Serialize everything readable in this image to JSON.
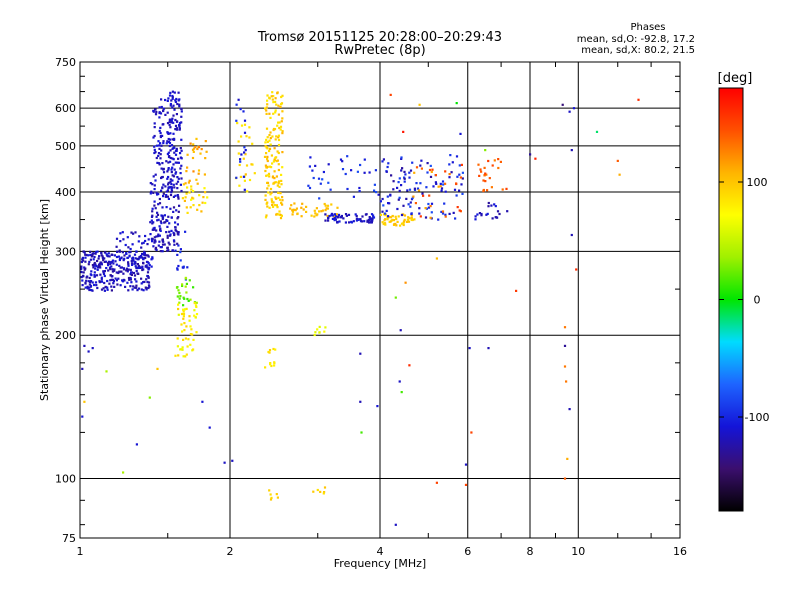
{
  "header": {
    "title": "Tromsø 20151125 20:28:00–20:29:43",
    "subtitle": "RwPretec (8p)"
  },
  "stats": {
    "heading": "Phases",
    "line_o": "mean, sd,O: -92.8, 17.2",
    "line_x": "mean, sd,X: 80.2, 21.5"
  },
  "colorbar": {
    "label": "[deg]",
    "ticks": [
      {
        "value": 100,
        "label": "100"
      },
      {
        "value": 0,
        "label": "0"
      },
      {
        "value": -100,
        "label": "-100"
      }
    ],
    "range": [
      -180,
      180
    ]
  },
  "chart_data": {
    "type": "scatter",
    "title": "Tromsø 20151125 20:28:00–20:29:43",
    "subtitle": "RwPretec (8p)",
    "xlabel": "Frequency [MHz]",
    "ylabel": "Stationary phase Virtual Height [km]",
    "x_scale": "log",
    "y_scale": "log",
    "xlim": [
      1,
      16
    ],
    "ylim": [
      75,
      750
    ],
    "grid": true,
    "x_ticks": [
      {
        "value": 1,
        "label": "1"
      },
      {
        "value": 2,
        "label": "2"
      },
      {
        "value": 4,
        "label": "4"
      },
      {
        "value": 6,
        "label": "6"
      },
      {
        "value": 8,
        "label": "8"
      },
      {
        "value": 10,
        "label": "10"
      },
      {
        "value": 16,
        "label": "16"
      }
    ],
    "y_ticks": [
      {
        "value": 75,
        "label": "75"
      },
      {
        "value": 100,
        "label": "100"
      },
      {
        "value": 200,
        "label": "200"
      },
      {
        "value": 300,
        "label": "300"
      },
      {
        "value": 400,
        "label": "400"
      },
      {
        "value": 500,
        "label": "500"
      },
      {
        "value": 600,
        "label": "600"
      },
      {
        "value": 750,
        "label": "750"
      }
    ],
    "color_by": "phase [deg]",
    "color_range": [
      -180,
      180
    ],
    "clusters": [
      {
        "f": [
          1.0,
          1.38
        ],
        "h": [
          248,
          300
        ],
        "phase": [
          -130,
          -105
        ],
        "count": 300
      },
      {
        "f": [
          1.18,
          1.4
        ],
        "h": [
          275,
          330
        ],
        "phase": [
          -125,
          -105
        ],
        "count": 60
      },
      {
        "f": [
          1.38,
          1.58
        ],
        "h": [
          300,
          420
        ],
        "phase": [
          -130,
          -105
        ],
        "count": 150
      },
      {
        "f": [
          1.4,
          1.5
        ],
        "h": [
          420,
          640
        ],
        "phase": [
          -125,
          -105
        ],
        "count": 70
      },
      {
        "f": [
          1.5,
          1.6
        ],
        "h": [
          400,
          650
        ],
        "phase": [
          -125,
          -105
        ],
        "count": 130
      },
      {
        "f": [
          1.6,
          1.8
        ],
        "h": [
          360,
          420
        ],
        "phase": [
          70,
          110
        ],
        "count": 30
      },
      {
        "f": [
          1.62,
          1.8
        ],
        "h": [
          420,
          520
        ],
        "phase": [
          95,
          130
        ],
        "count": 25
      },
      {
        "f": [
          1.55,
          1.65
        ],
        "h": [
          250,
          330
        ],
        "phase": [
          -110,
          -90
        ],
        "count": 15
      },
      {
        "f": [
          1.55,
          1.72
        ],
        "h": [
          230,
          265
        ],
        "phase": [
          10,
          40
        ],
        "count": 25
      },
      {
        "f": [
          1.55,
          1.72
        ],
        "h": [
          180,
          235
        ],
        "phase": [
          60,
          95
        ],
        "count": 50
      },
      {
        "f": [
          2.35,
          2.55
        ],
        "h": [
          350,
          650
        ],
        "phase": [
          80,
          110
        ],
        "count": 160
      },
      {
        "f": [
          2.05,
          2.25
        ],
        "h": [
          400,
          560
        ],
        "phase": [
          80,
          105
        ],
        "count": 25
      },
      {
        "f": [
          2.05,
          2.15
        ],
        "h": [
          400,
          620
        ],
        "phase": [
          -115,
          -90
        ],
        "count": 15
      },
      {
        "f": [
          2.6,
          3.3
        ],
        "h": [
          355,
          380
        ],
        "phase": [
          95,
          110
        ],
        "count": 40
      },
      {
        "f": [
          2.8,
          4.0
        ],
        "h": [
          380,
          480
        ],
        "phase": [
          -115,
          -80
        ],
        "count": 35
      },
      {
        "f": [
          3.1,
          3.9
        ],
        "h": [
          345,
          360
        ],
        "phase": [
          -125,
          -100
        ],
        "count": 70
      },
      {
        "f": [
          4.0,
          4.7
        ],
        "h": [
          340,
          360
        ],
        "phase": [
          90,
          105
        ],
        "count": 50
      },
      {
        "f": [
          4.0,
          5.9
        ],
        "h": [
          350,
          480
        ],
        "phase": [
          -130,
          -80
        ],
        "count": 110
      },
      {
        "f": [
          4.6,
          5.9
        ],
        "h": [
          350,
          460
        ],
        "phase": [
          110,
          160
        ],
        "count": 30
      },
      {
        "f": [
          6.3,
          7.2
        ],
        "h": [
          400,
          470
        ],
        "phase": [
          125,
          155
        ],
        "count": 25
      },
      {
        "f": [
          6.2,
          7.2
        ],
        "h": [
          350,
          380
        ],
        "phase": [
          -130,
          -100
        ],
        "count": 20
      },
      {
        "f": [
          2.35,
          2.5
        ],
        "h": [
          170,
          190
        ],
        "phase": [
          75,
          95
        ],
        "count": 12
      },
      {
        "f": [
          2.95,
          3.15
        ],
        "h": [
          200,
          210
        ],
        "phase": [
          55,
          75
        ],
        "count": 8
      },
      {
        "f": [
          2.35,
          2.5
        ],
        "h": [
          88,
          96
        ],
        "phase": [
          85,
          100
        ],
        "count": 6
      },
      {
        "f": [
          2.9,
          3.15
        ],
        "h": [
          90,
          96
        ],
        "phase": [
          85,
          100
        ],
        "count": 6
      }
    ],
    "points": [
      {
        "f": 1.02,
        "h": 190,
        "phase": -120
      },
      {
        "f": 1.04,
        "h": 185,
        "phase": -115
      },
      {
        "f": 1.06,
        "h": 188,
        "phase": -115
      },
      {
        "f": 1.01,
        "h": 170,
        "phase": -120
      },
      {
        "f": 1.13,
        "h": 168,
        "phase": 40
      },
      {
        "f": 1.22,
        "h": 103,
        "phase": 40
      },
      {
        "f": 1.43,
        "h": 170,
        "phase": 100
      },
      {
        "f": 1.38,
        "h": 148,
        "phase": 30
      },
      {
        "f": 1.3,
        "h": 118,
        "phase": -110
      },
      {
        "f": 1.02,
        "h": 145,
        "phase": 100
      },
      {
        "f": 1.01,
        "h": 135,
        "phase": -110
      },
      {
        "f": 1.76,
        "h": 145,
        "phase": -110
      },
      {
        "f": 1.82,
        "h": 128,
        "phase": -110
      },
      {
        "f": 1.95,
        "h": 108,
        "phase": -115
      },
      {
        "f": 2.02,
        "h": 109,
        "phase": -115
      },
      {
        "f": 2.08,
        "h": 625,
        "phase": -115
      },
      {
        "f": 3.65,
        "h": 183,
        "phase": -120
      },
      {
        "f": 3.65,
        "h": 145,
        "phase": -120
      },
      {
        "f": 3.67,
        "h": 125,
        "phase": 15
      },
      {
        "f": 3.95,
        "h": 142,
        "phase": -110
      },
      {
        "f": 4.3,
        "h": 240,
        "phase": 25
      },
      {
        "f": 4.4,
        "h": 205,
        "phase": -120
      },
      {
        "f": 4.38,
        "h": 160,
        "phase": -115
      },
      {
        "f": 4.42,
        "h": 152,
        "phase": 15
      },
      {
        "f": 4.5,
        "h": 258,
        "phase": 120
      },
      {
        "f": 4.58,
        "h": 173,
        "phase": 160
      },
      {
        "f": 4.3,
        "h": 80,
        "phase": -115
      },
      {
        "f": 4.2,
        "h": 640,
        "phase": 150
      },
      {
        "f": 4.45,
        "h": 535,
        "phase": 170
      },
      {
        "f": 4.8,
        "h": 610,
        "phase": 100
      },
      {
        "f": 5.2,
        "h": 290,
        "phase": 105
      },
      {
        "f": 5.2,
        "h": 98,
        "phase": 150
      },
      {
        "f": 5.7,
        "h": 615,
        "phase": 0
      },
      {
        "f": 5.8,
        "h": 530,
        "phase": -110
      },
      {
        "f": 5.95,
        "h": 107,
        "phase": -115
      },
      {
        "f": 5.95,
        "h": 97,
        "phase": 150
      },
      {
        "f": 6.05,
        "h": 188,
        "phase": -115
      },
      {
        "f": 6.1,
        "h": 125,
        "phase": 150
      },
      {
        "f": 6.6,
        "h": 188,
        "phase": -120
      },
      {
        "f": 6.5,
        "h": 490,
        "phase": 30
      },
      {
        "f": 7.5,
        "h": 248,
        "phase": 155
      },
      {
        "f": 8.2,
        "h": 470,
        "phase": 165
      },
      {
        "f": 8.0,
        "h": 480,
        "phase": -130
      },
      {
        "f": 9.3,
        "h": 610,
        "phase": -140
      },
      {
        "f": 9.6,
        "h": 590,
        "phase": -115
      },
      {
        "f": 9.8,
        "h": 600,
        "phase": -110
      },
      {
        "f": 9.7,
        "h": 490,
        "phase": -120
      },
      {
        "f": 9.7,
        "h": 325,
        "phase": -120
      },
      {
        "f": 9.9,
        "h": 275,
        "phase": 160
      },
      {
        "f": 9.4,
        "h": 208,
        "phase": 130
      },
      {
        "f": 9.4,
        "h": 190,
        "phase": -130
      },
      {
        "f": 9.4,
        "h": 172,
        "phase": 130
      },
      {
        "f": 9.45,
        "h": 160,
        "phase": 130
      },
      {
        "f": 9.6,
        "h": 140,
        "phase": -120
      },
      {
        "f": 9.5,
        "h": 110,
        "phase": 110
      },
      {
        "f": 9.4,
        "h": 100,
        "phase": 140
      },
      {
        "f": 10.9,
        "h": 535,
        "phase": -15
      },
      {
        "f": 12.0,
        "h": 465,
        "phase": 140
      },
      {
        "f": 12.1,
        "h": 435,
        "phase": 110
      },
      {
        "f": 13.2,
        "h": 625,
        "phase": 160
      }
    ]
  }
}
